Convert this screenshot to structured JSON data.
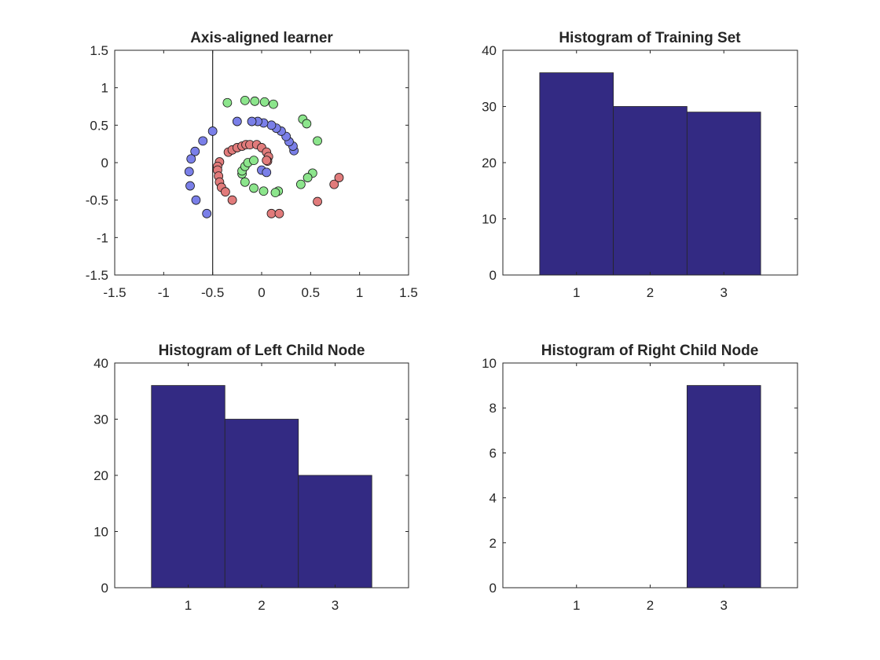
{
  "colors": {
    "bar_fill": "#332A83",
    "axis": "#262626",
    "class1_point": "#7A7FE8",
    "class2_point": "#8CE58C",
    "class3_point": "#E17B7B",
    "point_edge": "#1A1A1A"
  },
  "chart_data": [
    {
      "type": "scatter",
      "title": "Axis-aligned learner",
      "xlabel": "",
      "ylabel": "",
      "xlim": [
        -1.5,
        1.5
      ],
      "ylim": [
        -1.5,
        1.5
      ],
      "xticks": [
        "-1.5",
        "-1",
        "-0.5",
        "0",
        "0.5",
        "1",
        "1.5"
      ],
      "yticks": [
        "1.5",
        "1",
        "0.5",
        "0",
        "-0.5",
        "-1",
        "-1.5"
      ],
      "xtick_values": [
        -1.5,
        -1,
        -0.5,
        0,
        0.5,
        1,
        1.5
      ],
      "ytick_values": [
        1.5,
        1,
        0.5,
        0,
        -0.5,
        -1,
        -1.5
      ],
      "grid": false,
      "split_line_x": -0.5,
      "series": [
        {
          "color_key": "class1_point",
          "points": [
            [
              0.33,
              0.16
            ],
            [
              0.32,
              0.22
            ],
            [
              0.28,
              0.28
            ],
            [
              0.25,
              0.35
            ],
            [
              0.2,
              0.42
            ],
            [
              0.15,
              0.46
            ],
            [
              0.1,
              0.5
            ],
            [
              0.02,
              0.53
            ],
            [
              -0.04,
              0.55
            ],
            [
              -0.1,
              0.55
            ],
            [
              -0.25,
              0.55
            ],
            [
              -0.5,
              0.42
            ],
            [
              -0.6,
              0.29
            ],
            [
              -0.68,
              0.15
            ],
            [
              -0.72,
              0.05
            ],
            [
              -0.74,
              -0.12
            ],
            [
              -0.73,
              -0.31
            ],
            [
              -0.67,
              -0.5
            ],
            [
              -0.56,
              -0.68
            ],
            [
              0.0,
              -0.1
            ],
            [
              0.05,
              -0.13
            ]
          ]
        },
        {
          "color_key": "class2_point",
          "points": [
            [
              -0.35,
              0.8
            ],
            [
              -0.17,
              0.83
            ],
            [
              -0.07,
              0.82
            ],
            [
              0.03,
              0.81
            ],
            [
              0.12,
              0.78
            ],
            [
              0.42,
              0.58
            ],
            [
              0.46,
              0.52
            ],
            [
              0.57,
              0.29
            ],
            [
              0.52,
              -0.14
            ],
            [
              0.47,
              -0.2
            ],
            [
              0.4,
              -0.29
            ],
            [
              0.17,
              -0.38
            ],
            [
              0.14,
              -0.4
            ],
            [
              0.02,
              -0.38
            ],
            [
              -0.08,
              -0.34
            ],
            [
              -0.17,
              -0.26
            ],
            [
              -0.2,
              -0.15
            ],
            [
              -0.2,
              -0.11
            ],
            [
              -0.17,
              -0.05
            ],
            [
              -0.14,
              0.0
            ],
            [
              -0.08,
              0.03
            ]
          ]
        },
        {
          "color_key": "class3_point",
          "points": [
            [
              -0.34,
              0.14
            ],
            [
              -0.3,
              0.17
            ],
            [
              -0.25,
              0.2
            ],
            [
              -0.2,
              0.22
            ],
            [
              -0.16,
              0.24
            ],
            [
              -0.12,
              0.24
            ],
            [
              -0.05,
              0.24
            ],
            [
              0.0,
              0.2
            ],
            [
              0.05,
              0.14
            ],
            [
              0.07,
              0.08
            ],
            [
              0.06,
              0.02
            ],
            [
              0.05,
              0.03
            ],
            [
              -0.43,
              0.01
            ],
            [
              -0.45,
              -0.05
            ],
            [
              -0.45,
              -0.1
            ],
            [
              -0.44,
              -0.18
            ],
            [
              -0.43,
              -0.26
            ],
            [
              -0.41,
              -0.33
            ],
            [
              -0.37,
              -0.39
            ],
            [
              -0.3,
              -0.5
            ],
            [
              0.1,
              -0.68
            ],
            [
              0.18,
              -0.68
            ],
            [
              0.57,
              -0.52
            ],
            [
              0.74,
              -0.29
            ],
            [
              0.79,
              -0.2
            ]
          ]
        }
      ]
    },
    {
      "type": "bar",
      "title": "Histogram of Training Set",
      "xlabel": "",
      "ylabel": "",
      "categories": [
        "1",
        "2",
        "3"
      ],
      "values": [
        36,
        30,
        29
      ],
      "ylim": [
        0,
        40
      ],
      "yticks": [
        "40",
        "30",
        "20",
        "10",
        "0"
      ],
      "ytick_values": [
        40,
        30,
        20,
        10,
        0
      ],
      "grid": false
    },
    {
      "type": "bar",
      "title": "Histogram of Left Child Node",
      "xlabel": "",
      "ylabel": "",
      "categories": [
        "1",
        "2",
        "3"
      ],
      "values": [
        36,
        30,
        20
      ],
      "ylim": [
        0,
        40
      ],
      "yticks": [
        "40",
        "30",
        "20",
        "10",
        "0"
      ],
      "ytick_values": [
        40,
        30,
        20,
        10,
        0
      ],
      "grid": false
    },
    {
      "type": "bar",
      "title": "Histogram of Right Child Node",
      "xlabel": "",
      "ylabel": "",
      "categories": [
        "1",
        "2",
        "3"
      ],
      "values": [
        0,
        0,
        9
      ],
      "ylim": [
        0,
        10
      ],
      "yticks": [
        "10",
        "8",
        "6",
        "4",
        "2",
        "0"
      ],
      "ytick_values": [
        10,
        8,
        6,
        4,
        2,
        0
      ],
      "grid": false
    }
  ]
}
